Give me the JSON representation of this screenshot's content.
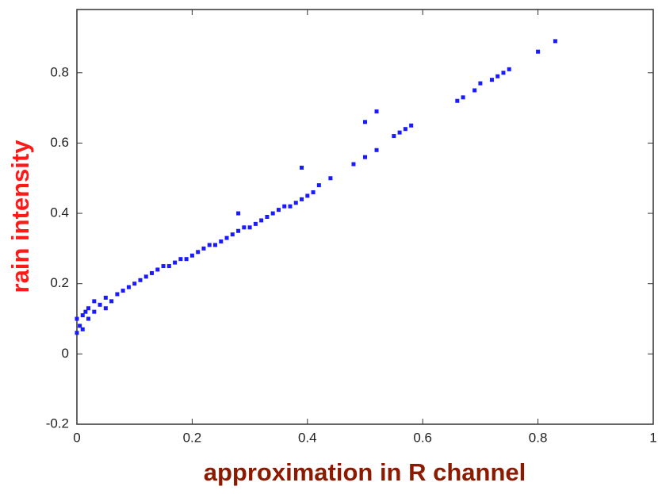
{
  "chart_data": {
    "type": "scatter",
    "xlabel": "approximation in R channel",
    "ylabel": "rain intensity",
    "xlabel_color": "#8b1a00",
    "ylabel_color": "#ff1a1a",
    "xlim": [
      0,
      1
    ],
    "ylim": [
      -0.2,
      0.98
    ],
    "xticks": [
      0,
      0.2,
      0.4,
      0.6,
      0.8,
      1
    ],
    "yticks": [
      -0.2,
      0,
      0.2,
      0.4,
      0.6,
      0.8
    ],
    "grid": false,
    "series": [
      {
        "color": "#1a1aff",
        "x": [
          0,
          0,
          0.005,
          0.01,
          0.01,
          0.015,
          0.02,
          0.02,
          0.03,
          0.03,
          0.04,
          0.05,
          0.05,
          0.06,
          0.07,
          0.08,
          0.09,
          0.1,
          0.11,
          0.12,
          0.13,
          0.14,
          0.15,
          0.16,
          0.17,
          0.18,
          0.19,
          0.2,
          0.21,
          0.22,
          0.23,
          0.24,
          0.25,
          0.26,
          0.27,
          0.28,
          0.28,
          0.29,
          0.3,
          0.31,
          0.32,
          0.33,
          0.34,
          0.35,
          0.36,
          0.37,
          0.38,
          0.39,
          0.39,
          0.4,
          0.41,
          0.42,
          0.44,
          0.48,
          0.5,
          0.5,
          0.52,
          0.52,
          0.55,
          0.56,
          0.57,
          0.58,
          0.66,
          0.67,
          0.69,
          0.7,
          0.72,
          0.73,
          0.74,
          0.75,
          0.8,
          0.83
        ],
        "values": [
          0.06,
          0.1,
          0.08,
          0.11,
          0.07,
          0.12,
          0.1,
          0.13,
          0.12,
          0.15,
          0.14,
          0.16,
          0.13,
          0.15,
          0.17,
          0.18,
          0.19,
          0.2,
          0.21,
          0.22,
          0.23,
          0.24,
          0.25,
          0.25,
          0.26,
          0.27,
          0.27,
          0.28,
          0.29,
          0.3,
          0.31,
          0.31,
          0.32,
          0.33,
          0.34,
          0.35,
          0.4,
          0.36,
          0.36,
          0.37,
          0.38,
          0.39,
          0.4,
          0.41,
          0.42,
          0.42,
          0.43,
          0.44,
          0.53,
          0.45,
          0.46,
          0.48,
          0.5,
          0.54,
          0.56,
          0.66,
          0.58,
          0.69,
          0.62,
          0.63,
          0.64,
          0.65,
          0.72,
          0.73,
          0.75,
          0.77,
          0.78,
          0.79,
          0.8,
          0.81,
          0.86,
          0.89
        ]
      }
    ]
  }
}
